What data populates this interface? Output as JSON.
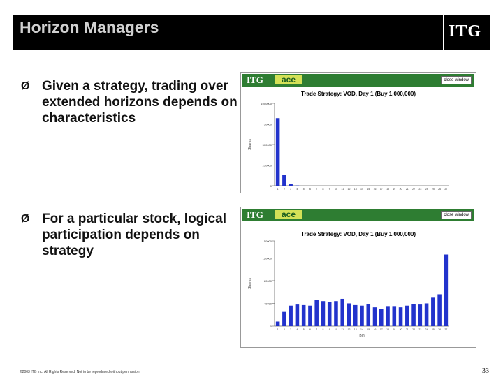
{
  "header": {
    "title": "Horizon Managers",
    "logo": "ITG"
  },
  "bullets": [
    {
      "marker": "Ø",
      "text": "Given a strategy, trading over extended horizons depends on characteristics"
    },
    {
      "marker": "Ø",
      "text": "For a particular stock, logical participation depends on strategy"
    }
  ],
  "windows": [
    {
      "brand": "ITG",
      "product": "ace",
      "close_label": "close window"
    },
    {
      "brand": "ITG",
      "product": "ace",
      "close_label": "close window"
    }
  ],
  "chart_data": [
    {
      "type": "bar",
      "title": "Trade Strategy: VOD, Day 1 (Buy 1,000,000)",
      "xlabel": "Bin",
      "ylabel": "Shares",
      "categories": [
        "1",
        "2",
        "3",
        "4",
        "5",
        "6",
        "7",
        "8",
        "9",
        "10",
        "11",
        "12",
        "13",
        "14",
        "15",
        "16",
        "17",
        "18",
        "19",
        "20",
        "21",
        "22",
        "23",
        "24",
        "25",
        "26",
        "27"
      ],
      "values": [
        820000,
        135000,
        18000,
        3000,
        0,
        0,
        0,
        0,
        0,
        0,
        0,
        0,
        0,
        0,
        0,
        0,
        0,
        0,
        0,
        0,
        0,
        0,
        0,
        0,
        0,
        0,
        0
      ],
      "ylim": [
        0,
        1000000
      ],
      "yticks": [
        "0",
        "250000",
        "500000",
        "750000",
        "1000000"
      ]
    },
    {
      "type": "bar",
      "title": "Trade Strategy: VOD, Day 1 (Buy 1,000,000)",
      "xlabel": "Bin",
      "ylabel": "Shares",
      "categories": [
        "1",
        "2",
        "3",
        "4",
        "5",
        "6",
        "7",
        "8",
        "9",
        "10",
        "11",
        "12",
        "13",
        "14",
        "15",
        "16",
        "17",
        "18",
        "19",
        "20",
        "21",
        "22",
        "23",
        "24",
        "25",
        "26",
        "27"
      ],
      "values": [
        8000,
        25000,
        36000,
        38000,
        37000,
        36000,
        46000,
        44000,
        43000,
        44000,
        48000,
        40000,
        37000,
        36000,
        39000,
        33000,
        30000,
        34000,
        34000,
        33000,
        36000,
        39000,
        38000,
        40000,
        50000,
        56000,
        126000
      ],
      "ylim": [
        0,
        150000
      ],
      "yticks": [
        "0",
        "40000",
        "80000",
        "120000",
        "150000"
      ]
    }
  ],
  "footer": {
    "copyright": "©2003 ITG Inc. All Rights Reserved. Not to be reproduced without permission",
    "page": "33"
  }
}
